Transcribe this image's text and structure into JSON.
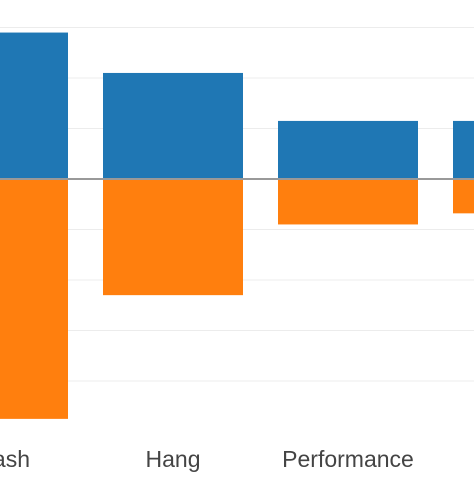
{
  "chart_data": {
    "type": "bar",
    "stacking": "diverging",
    "categories": [
      "Crash",
      "Hang",
      "Performance",
      ""
    ],
    "visible_category_labels": [
      "ash",
      "Hang",
      "Performance",
      ""
    ],
    "series": [
      {
        "color": "#1f77b4",
        "values": [
          2.9,
          2.1,
          1.15,
          1.15
        ]
      },
      {
        "color": "#ff7f0e",
        "values": [
          -4.75,
          -2.3,
          -0.9,
          -0.68
        ]
      }
    ],
    "ylim": [
      -5.3,
      3.0
    ],
    "zero_line": true,
    "grid": true,
    "legend": "none"
  }
}
